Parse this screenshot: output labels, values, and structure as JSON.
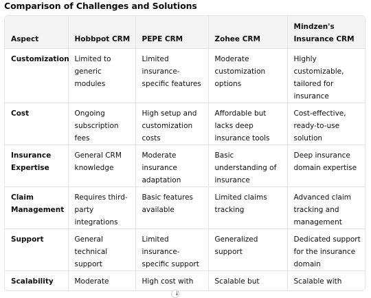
{
  "title": "Comparison of Challenges and Solutions",
  "table": {
    "headers": [
      "Aspect",
      "Hobbpot CRM",
      "PEPE CRM",
      "Zohee CRM",
      "Mindzen's Insurance CRM"
    ],
    "rows": [
      [
        "Customization",
        "Limited to generic modules",
        "Limited insurance-specific features",
        "Moderate customization options",
        "Highly customizable, tailored for insurance"
      ],
      [
        "Cost",
        "Ongoing subscription fees",
        "High setup and customization costs",
        "Affordable but lacks deep insurance tools",
        "Cost-effective, ready-to-use solution"
      ],
      [
        "Insurance Expertise",
        "General CRM knowledge",
        "Moderate insurance adaptation",
        "Basic understanding of insurance",
        "Deep insurance domain expertise"
      ],
      [
        "Claim Management",
        "Requires third-party integrations",
        "Basic features available",
        "Limited claims tracking",
        "Advanced claim tracking and management"
      ],
      [
        "Support",
        "General technical support",
        "Limited insurance-specific support",
        "Generalized support",
        "Dedicated support for the insurance domain"
      ],
      [
        "Scalability",
        "Moderate",
        "High cost with scale",
        "Scalable but generic",
        "Scalable with insurance-specific focus"
      ]
    ]
  },
  "scroll_icon": "arrow-down-icon"
}
